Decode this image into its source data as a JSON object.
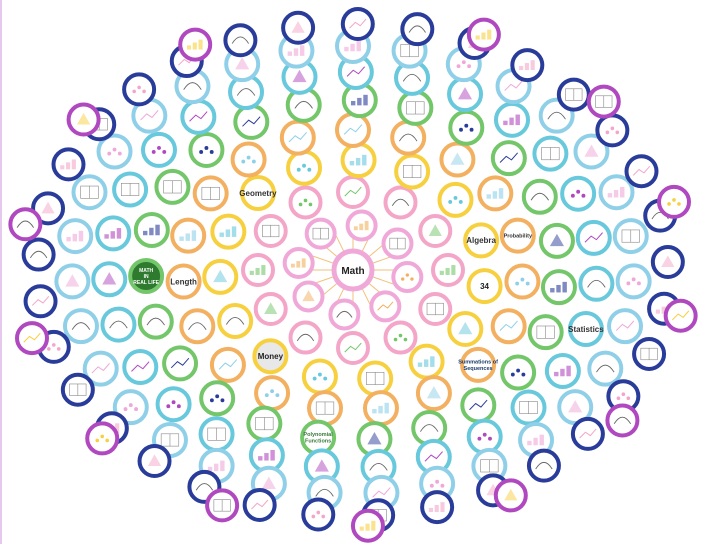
{
  "center": {
    "label": "Math"
  },
  "ring_colors": [
    "#f0a8d8",
    "#f4a6c8",
    "#f7d040",
    "#f2b060",
    "#74c66a",
    "#68c8dc",
    "#8fd0e8",
    "#2a3c9a",
    "#b048c0"
  ],
  "hub_spoke_color": "#f1c27d",
  "labeled_nodes": [
    {
      "name": "node-algebra",
      "lines": [
        "Algebra"
      ],
      "bg": "#ffffff",
      "fg": "#333333"
    },
    {
      "name": "node-probability",
      "lines": [
        "Probability"
      ],
      "bg": "#ffffff",
      "fg": "#333333"
    },
    {
      "name": "node-statistics",
      "lines": [
        "Statistics"
      ],
      "bg": "#ffffff",
      "fg": "#333333"
    },
    {
      "name": "node-money",
      "lines": [
        "Money"
      ],
      "bg": "#e8e8e8",
      "fg": "#222222"
    },
    {
      "name": "node-geometry",
      "lines": [
        "Geometry"
      ],
      "bg": "#ffffff",
      "fg": "#333333"
    },
    {
      "name": "node-length",
      "lines": [
        "Length"
      ],
      "bg": "#ffffff",
      "fg": "#333333"
    },
    {
      "name": "node-math-in-real-life",
      "lines": [
        "MATH",
        "IN",
        "REAL LIFE"
      ],
      "bg": "#2e7a2e",
      "fg": "#ffffff"
    },
    {
      "name": "node-summations-of-sequences",
      "lines": [
        "Summations of",
        "Sequences"
      ],
      "bg": "#ffffff",
      "fg": "#1a3a6a"
    },
    {
      "name": "node-polynomial-functions",
      "lines": [
        "Polynomial",
        "Functions"
      ],
      "bg": "#ffffff",
      "fg": "#3a7a3a"
    },
    {
      "name": "node-number-34",
      "lines": [
        "34"
      ],
      "bg": "#ffffff",
      "fg": "#222222"
    }
  ]
}
